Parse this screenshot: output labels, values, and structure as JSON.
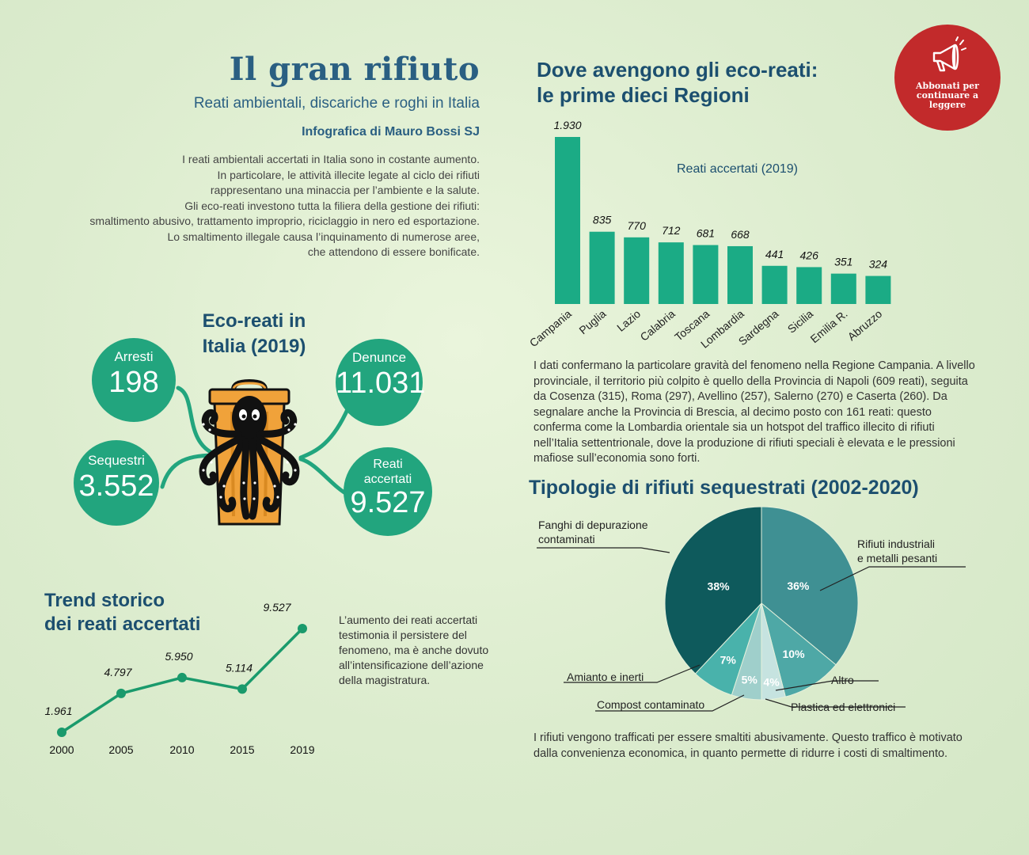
{
  "header": {
    "title": "Il gran rifiuto",
    "subtitle": "Reati ambientali, discariche e roghi in Italia",
    "byline": "Infografica di Mauro Bossi SJ",
    "intro_lines": [
      "I reati ambientali accertati in Italia sono in costante aumento.",
      "In particolare, le attività illecite legate al ciclo dei rifiuti",
      "rappresentano una minaccia per l’ambiente e la salute.",
      "Gli eco-reati investono tutta la filiera della gestione dei rifiuti:",
      "smaltimento abusivo, trattamento improprio, riciclaggio in nero ed esportazione.",
      "Lo smaltimento illegale causa l’inquinamento di numerose aree,",
      "che attendono di essere bonificate."
    ]
  },
  "badge": {
    "text": "Abbonati per continuare a leggere",
    "icon": "megaphone-icon",
    "color": "#c22a2b"
  },
  "ecoreati": {
    "title_line1": "Eco-reati in",
    "title_line2": "Italia (2019)",
    "arresti": {
      "label": "Arresti",
      "value": "198"
    },
    "denunce": {
      "label": "Denunce",
      "value": "11.031"
    },
    "sequestri": {
      "label": "Sequestri",
      "value": "3.552"
    },
    "reati": {
      "label_line1": "Reati",
      "label_line2": "accertati",
      "value": "9.527"
    },
    "circle_color": "#22a57e",
    "illustration": "octopus-in-trash-can-icon"
  },
  "regioni": {
    "title_line1": "Dove avengono gli eco-reati:",
    "title_line2": "le prime dieci Regioni",
    "legend": "Reati accertati (2019)",
    "paragraph": "I dati confermano la particolare gravità del fenomeno nella Regione Campania. A livello provinciale, il territorio più colpito è quello della Provincia di Napoli (609 reati), seguita da Cosenza (315), Roma (297), Avellino (257), Salerno (270) e Caserta (260). Da segnalare anche la Provincia di Brescia, al decimo posto con 161 reati: questo conferma come la Lombardia orientale sia un hotspot del traffico illecito di rifiuti nell’Italia settentrionale, dove la produzione di rifiuti speciali è elevata e le pressioni mafiose sull’economia sono forti."
  },
  "tipologie": {
    "title": "Tipologie di rifiuti sequestrati (2002-2020)",
    "paragraph": "I rifiuti vengono trafficati per essere smaltiti abusivamente. Questo traffico è motivato dalla convenienza economica, in quanto permette di ridurre i costi di smaltimento."
  },
  "trend": {
    "title_line1": "Trend storico",
    "title_line2": "dei reati accertati",
    "note": "L’aumento dei reati accertati testimonia il persistere del fenomeno, ma è anche dovuto all’intensificazione dell’azione della magistratura."
  },
  "chart_data": [
    {
      "type": "bar",
      "categories": [
        "Campania",
        "Puglia",
        "Lazio",
        "Calabria",
        "Toscana",
        "Lombardia",
        "Sardegna",
        "Sicilia",
        "Emilia R.",
        "Abruzzo"
      ],
      "values": [
        1930,
        835,
        770,
        712,
        681,
        668,
        441,
        426,
        351,
        324
      ],
      "value_labels": [
        "1.930",
        "835",
        "770",
        "712",
        "681",
        "668",
        "441",
        "426",
        "351",
        "324"
      ],
      "title": "Dove avengono gli eco-reati: le prime dieci Regioni",
      "legend": "Reati accertati (2019)",
      "color": "#1bab85",
      "ylim": [
        0,
        1930
      ]
    },
    {
      "type": "pie",
      "title": "Tipologie di rifiuti sequestrati (2002-2020)",
      "slices": [
        {
          "name": "Rifiuti industriali e metalli pesanti",
          "value": 36,
          "label": "36%",
          "color": "#3f9093"
        },
        {
          "name": "Altro",
          "value": 10,
          "label": "10%",
          "color": "#4ea8a6"
        },
        {
          "name": "Plastica ed elettronici",
          "value": 4,
          "label": "4%",
          "color": "#c6e3e0"
        },
        {
          "name": "Compost contaminato",
          "value": 5,
          "label": "5%",
          "color": "#9fcfcb"
        },
        {
          "name": "Amianto e inerti",
          "value": 7,
          "label": "7%",
          "color": "#49b2ab"
        },
        {
          "name": "Fanghi di depurazione contaminati",
          "value": 38,
          "label": "38%",
          "color": "#0e5a5c"
        }
      ]
    },
    {
      "type": "line",
      "title": "Trend storico dei reati accertati",
      "x": [
        "2000",
        "2005",
        "2010",
        "2015",
        "2019"
      ],
      "values": [
        1961,
        4797,
        5950,
        5114,
        9527
      ],
      "value_labels": [
        "1.961",
        "4.797",
        "5.950",
        "5.114",
        "9.527"
      ],
      "color": "#1a9a6c"
    }
  ]
}
